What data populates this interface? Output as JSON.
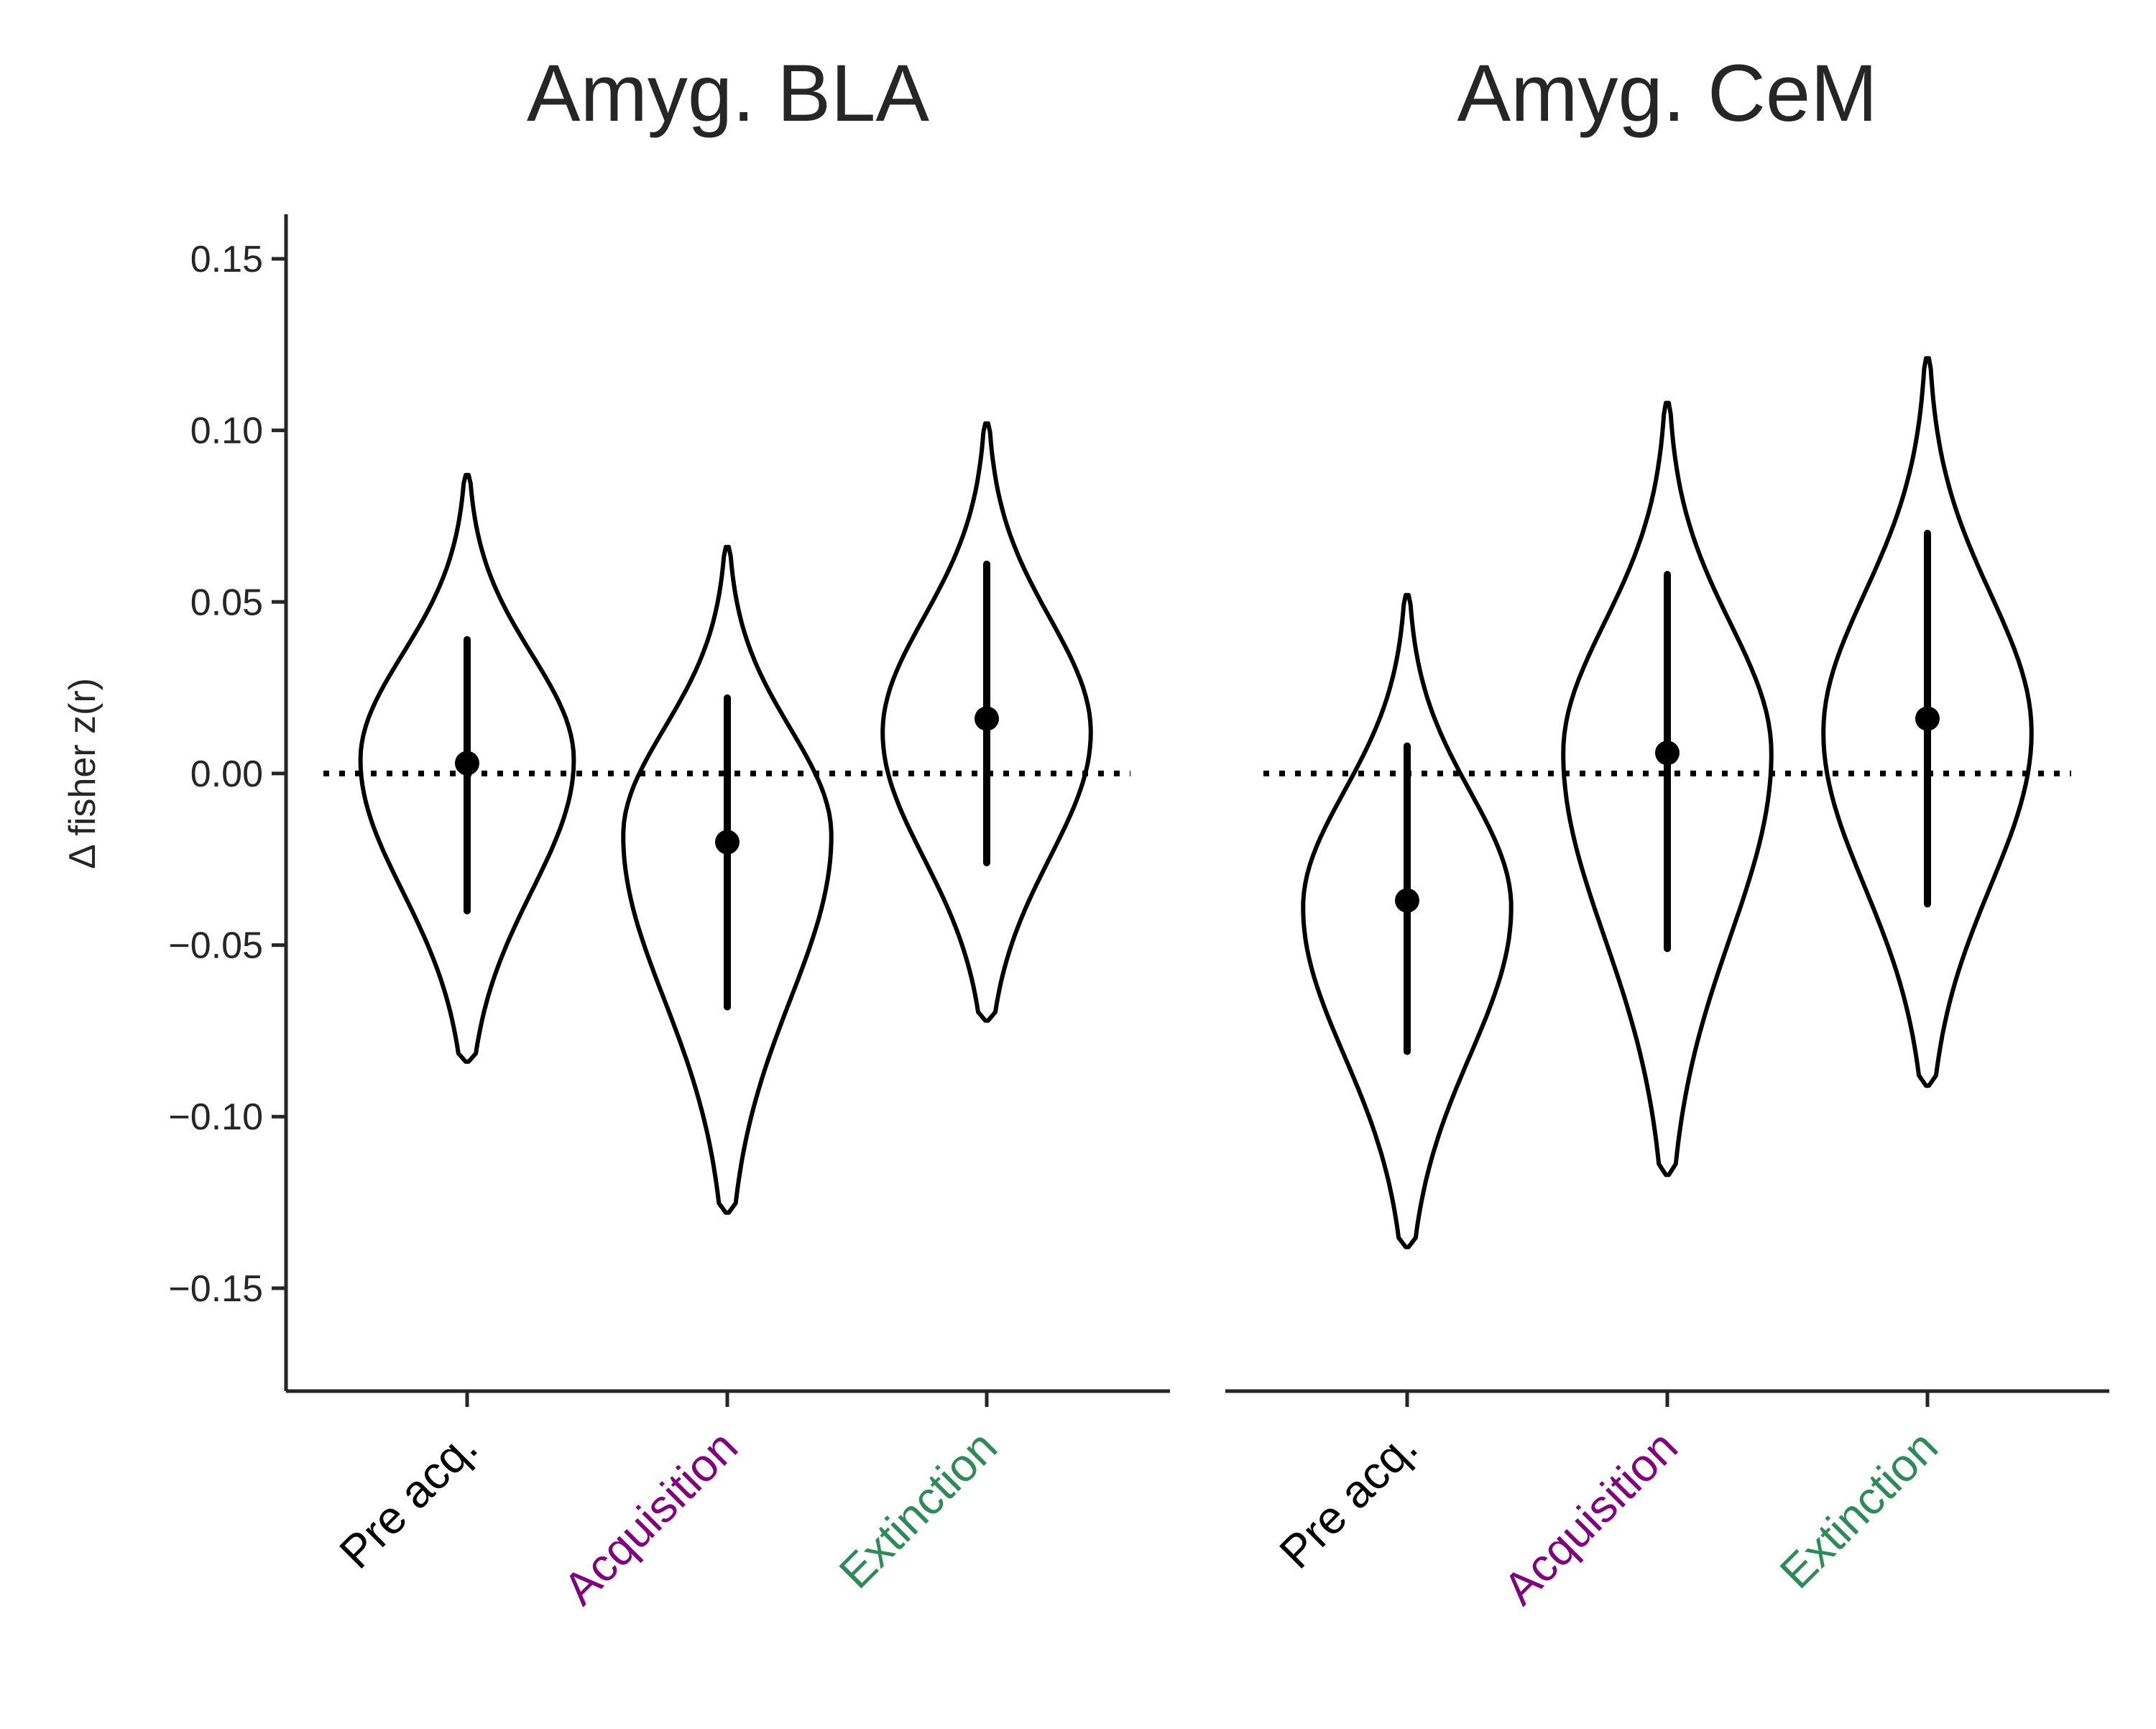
{
  "chart_data": [
    {
      "type": "violin",
      "title": "Amyg. BLA",
      "ylabel": "Δ fisher z(r)",
      "ylim": [
        -0.18,
        0.163
      ],
      "yticks": [
        0.15,
        0.1,
        0.05,
        0.0,
        -0.05,
        -0.1,
        -0.15
      ],
      "ytick_labels": [
        "0.15",
        "0.10",
        "0.05",
        "0.00",
        "−0.05",
        "−0.10",
        "−0.15"
      ],
      "reference_line": {
        "y": 0.0,
        "style": "dotted"
      },
      "categories": [
        {
          "label": "Pre acq.",
          "color": "#000000",
          "mean": 0.003,
          "ci": [
            -0.04,
            0.039
          ],
          "range": [
            -0.084,
            0.087
          ],
          "mode": 0.004,
          "max_half_width": 0.41
        },
        {
          "label": "Acquisition",
          "color": "#800080",
          "mean": -0.02,
          "ci": [
            -0.068,
            0.022
          ],
          "range": [
            -0.128,
            0.066
          ],
          "mode": -0.018,
          "max_half_width": 0.4
        },
        {
          "label": "Extinction",
          "color": "#2e8b57",
          "mean": 0.016,
          "ci": [
            -0.026,
            0.061
          ],
          "range": [
            -0.072,
            0.102
          ],
          "mode": 0.012,
          "max_half_width": 0.4
        }
      ]
    },
    {
      "type": "violin",
      "title": "Amyg. CeM",
      "ylabel": "",
      "ylim": [
        -0.18,
        0.163
      ],
      "yticks": [],
      "ytick_labels": [],
      "reference_line": {
        "y": 0.0,
        "style": "dotted"
      },
      "categories": [
        {
          "label": "Pre acq.",
          "color": "#000000",
          "mean": -0.037,
          "ci": [
            -0.081,
            0.008
          ],
          "range": [
            -0.138,
            0.052
          ],
          "mode": -0.039,
          "max_half_width": 0.4
        },
        {
          "label": "Acquisition",
          "color": "#800080",
          "mean": 0.006,
          "ci": [
            -0.051,
            0.058
          ],
          "range": [
            -0.117,
            0.108
          ],
          "mode": 0.006,
          "max_half_width": 0.4
        },
        {
          "label": "Extinction",
          "color": "#2e8b57",
          "mean": 0.016,
          "ci": [
            -0.038,
            0.07
          ],
          "range": [
            -0.091,
            0.121
          ],
          "mode": 0.012,
          "max_half_width": 0.4
        }
      ]
    }
  ]
}
